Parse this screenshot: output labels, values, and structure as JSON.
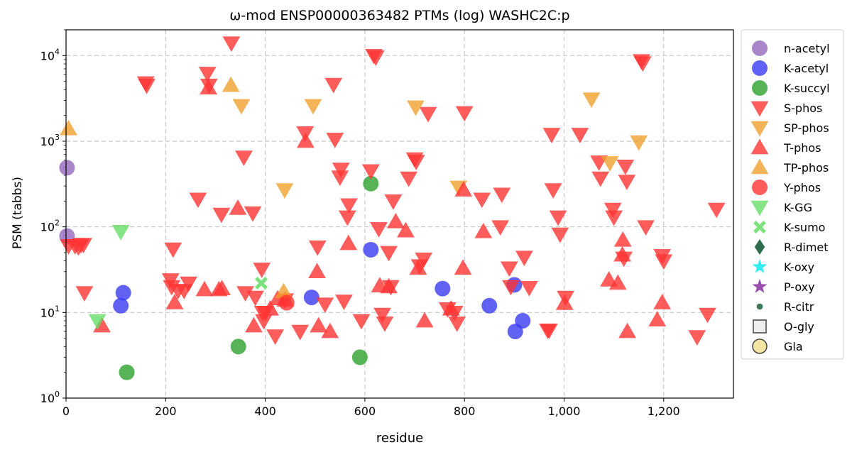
{
  "chart_data": {
    "type": "scatter",
    "title": "ω-mod ENSP00000363482 PTMs (log) WASHC2C:p",
    "xlabel": "residue",
    "ylabel": "PSM (tabbs)",
    "xlim": [
      0,
      1340
    ],
    "ylim": [
      1,
      20000
    ],
    "yscale": "log",
    "x_ticks": [
      0,
      200,
      400,
      600,
      800,
      1000,
      1200
    ],
    "x_tick_labels": [
      "0",
      "200",
      "400",
      "600",
      "800",
      "1,000",
      "1,200"
    ],
    "y_ticks": [
      1,
      10,
      100,
      1000,
      10000
    ],
    "y_tick_labels": [
      [
        "10",
        "0"
      ],
      [
        "10",
        "1"
      ],
      [
        "10",
        "2"
      ],
      [
        "10",
        "3"
      ],
      [
        "10",
        "4"
      ]
    ],
    "grid": true,
    "legend_position": "outside-right",
    "series": [
      {
        "name": "n-acetyl",
        "marker": "circle",
        "color": "#9467bd",
        "points": [
          [
            2,
            490
          ],
          [
            2,
            78
          ]
        ]
      },
      {
        "name": "K-acetyl",
        "marker": "circle",
        "color": "#3a3af0",
        "points": [
          [
            110,
            12
          ],
          [
            115,
            17
          ],
          [
            493,
            15
          ],
          [
            612,
            54
          ],
          [
            756,
            19
          ],
          [
            850,
            12
          ],
          [
            900,
            21
          ],
          [
            902,
            6
          ],
          [
            917,
            8
          ]
        ]
      },
      {
        "name": "K-succyl",
        "marker": "circle",
        "color": "#2ca02c",
        "points": [
          [
            122,
            2
          ],
          [
            346,
            4
          ],
          [
            590,
            3
          ],
          [
            612,
            320
          ]
        ]
      },
      {
        "name": "S-phos",
        "marker": "triangle-down",
        "color": "#ff3333",
        "points": [
          [
            5,
            60
          ],
          [
            18,
            60
          ],
          [
            25,
            58
          ],
          [
            30,
            62
          ],
          [
            35,
            62
          ],
          [
            37,
            17
          ],
          [
            160,
            4800
          ],
          [
            162,
            4500
          ],
          [
            210,
            24
          ],
          [
            212,
            20
          ],
          [
            215,
            55
          ],
          [
            225,
            18
          ],
          [
            237,
            18
          ],
          [
            246,
            22
          ],
          [
            265,
            210
          ],
          [
            284,
            6200
          ],
          [
            287,
            4500
          ],
          [
            312,
            140
          ],
          [
            332,
            14000
          ],
          [
            357,
            650
          ],
          [
            360,
            17
          ],
          [
            375,
            145
          ],
          [
            380,
            15
          ],
          [
            393,
            32
          ],
          [
            395,
            10
          ],
          [
            397,
            8
          ],
          [
            400,
            10
          ],
          [
            420,
            5.3
          ],
          [
            440,
            14
          ],
          [
            470,
            6
          ],
          [
            480,
            1250
          ],
          [
            505,
            58
          ],
          [
            520,
            12.5
          ],
          [
            537,
            4600
          ],
          [
            540,
            1050
          ],
          [
            550,
            380
          ],
          [
            552,
            470
          ],
          [
            558,
            13.5
          ],
          [
            565,
            130
          ],
          [
            568,
            180
          ],
          [
            593,
            8
          ],
          [
            612,
            450
          ],
          [
            618,
            10000
          ],
          [
            622,
            9600
          ],
          [
            628,
            95
          ],
          [
            635,
            9.5
          ],
          [
            640,
            7.5
          ],
          [
            648,
            50
          ],
          [
            652,
            20
          ],
          [
            657,
            200
          ],
          [
            688,
            370
          ],
          [
            700,
            620
          ],
          [
            703,
            580
          ],
          [
            710,
            35
          ],
          [
            718,
            42
          ],
          [
            727,
            2100
          ],
          [
            766,
            11
          ],
          [
            780,
            10
          ],
          [
            785,
            7.5
          ],
          [
            800,
            2150
          ],
          [
            835,
            210
          ],
          [
            872,
            100
          ],
          [
            875,
            240
          ],
          [
            890,
            33
          ],
          [
            893,
            20
          ],
          [
            920,
            44
          ],
          [
            930,
            19.5
          ],
          [
            967,
            6.2
          ],
          [
            970,
            6.2
          ],
          [
            975,
            1200
          ],
          [
            978,
            270
          ],
          [
            988,
            130
          ],
          [
            992,
            82
          ],
          [
            1003,
            15
          ],
          [
            1032,
            1200
          ],
          [
            1070,
            570
          ],
          [
            1073,
            370
          ],
          [
            1098,
            160
          ],
          [
            1100,
            130
          ],
          [
            1120,
            43
          ],
          [
            1123,
            510
          ],
          [
            1126,
            340
          ],
          [
            1155,
            8700
          ],
          [
            1158,
            8200
          ],
          [
            1164,
            100
          ],
          [
            1197,
            46
          ],
          [
            1200,
            40
          ],
          [
            1267,
            5.2
          ],
          [
            1288,
            9.5
          ],
          [
            1306,
            160
          ]
        ]
      },
      {
        "name": "SP-phos",
        "marker": "triangle-down",
        "color": "#f0a030",
        "points": [
          [
            352,
            2600
          ],
          [
            439,
            270
          ],
          [
            496,
            2600
          ],
          [
            702,
            2500
          ],
          [
            788,
            290
          ],
          [
            1055,
            3100
          ],
          [
            1092,
            560
          ],
          [
            1150,
            980
          ]
        ]
      },
      {
        "name": "T-phos",
        "marker": "triangle-up",
        "color": "#ff3333",
        "points": [
          [
            72,
            7
          ],
          [
            218,
            13
          ],
          [
            278,
            18.5
          ],
          [
            286,
            4200
          ],
          [
            307,
            18.5
          ],
          [
            313,
            19
          ],
          [
            345,
            165
          ],
          [
            377,
            7
          ],
          [
            410,
            11
          ],
          [
            425,
            14.5
          ],
          [
            440,
            14
          ],
          [
            481,
            1000
          ],
          [
            504,
            30
          ],
          [
            507,
            7
          ],
          [
            530,
            6
          ],
          [
            567,
            64
          ],
          [
            630,
            20.5
          ],
          [
            648,
            20
          ],
          [
            662,
            115
          ],
          [
            682,
            90
          ],
          [
            707,
            33
          ],
          [
            720,
            8
          ],
          [
            773,
            11
          ],
          [
            797,
            33
          ],
          [
            798,
            270
          ],
          [
            838,
            88
          ],
          [
            1001,
            12.8
          ],
          [
            1090,
            24
          ],
          [
            1108,
            22
          ],
          [
            1117,
            47
          ],
          [
            1118,
            70
          ],
          [
            1127,
            6
          ],
          [
            1187,
            8.2
          ],
          [
            1197,
            13
          ]
        ]
      },
      {
        "name": "TP-phos",
        "marker": "triangle-up",
        "color": "#f0a030",
        "points": [
          [
            5,
            1400
          ],
          [
            331,
            4500
          ],
          [
            437,
            17.5
          ]
        ]
      },
      {
        "name": "Y-phos",
        "marker": "circle",
        "color": "#ff3333",
        "points": [
          [
            443,
            13
          ]
        ]
      },
      {
        "name": "K-GG",
        "marker": "triangle-down",
        "color": "#66dd66",
        "points": [
          [
            110,
            88
          ],
          [
            63,
            8
          ]
        ]
      },
      {
        "name": "K-sumo",
        "marker": "x",
        "color": "#66dd66",
        "points": [
          [
            392,
            22
          ]
        ]
      },
      {
        "name": "R-dimet",
        "marker": "diamond",
        "color": "#2f6b4f",
        "points": []
      },
      {
        "name": "K-oxy",
        "marker": "star",
        "color": "#33eeee",
        "points": []
      },
      {
        "name": "P-oxy",
        "marker": "star",
        "color": "#9a4fb0",
        "points": []
      },
      {
        "name": "R-citr",
        "marker": "small-circle",
        "color": "#3d7a5e",
        "points": []
      },
      {
        "name": "O-gly",
        "marker": "square",
        "color": "#eeeeee",
        "points": []
      },
      {
        "name": "Gla",
        "marker": "circle-outline",
        "color": "#f5e6a8",
        "points": []
      }
    ]
  }
}
